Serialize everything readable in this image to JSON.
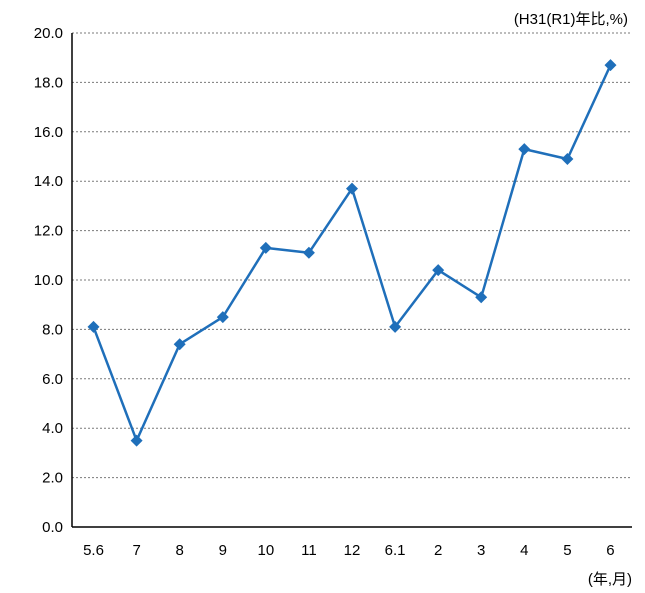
{
  "chart_data": {
    "type": "line",
    "y_unit_label": "(H31(R1)年比,%)",
    "x_unit_label": "(年,月)",
    "categories": [
      "5.6",
      "7",
      "8",
      "9",
      "10",
      "11",
      "12",
      "6.1",
      "2",
      "3",
      "4",
      "5",
      "6"
    ],
    "series": [
      {
        "values": [
          8.1,
          3.5,
          7.4,
          8.5,
          11.3,
          11.1,
          13.7,
          8.1,
          10.4,
          9.3,
          15.3,
          14.9,
          18.7
        ],
        "color": "#1f6fba"
      }
    ],
    "ylim": [
      0,
      20
    ],
    "y_ticks": [
      "0.0",
      "2.0",
      "4.0",
      "6.0",
      "8.0",
      "10.0",
      "12.0",
      "14.0",
      "16.0",
      "18.0",
      "20.0"
    ],
    "grid": true,
    "marker": "diamond"
  }
}
